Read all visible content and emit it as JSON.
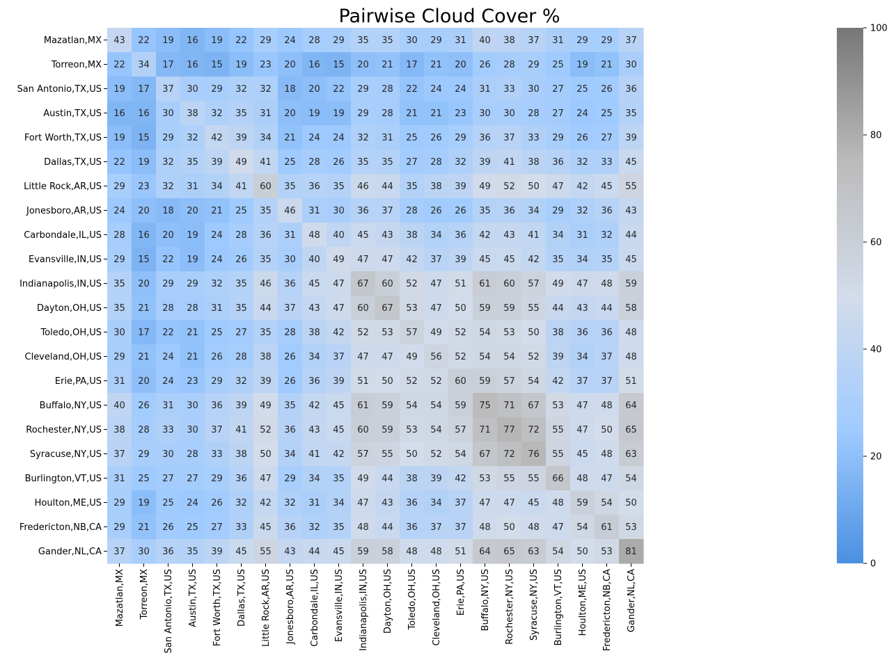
{
  "chart_data": {
    "type": "heatmap",
    "title": "Pairwise Cloud Cover %",
    "xlabel": "",
    "ylabel": "",
    "rows": [
      "Mazatlan,MX",
      "Torreon,MX",
      "San Antonio,TX,US",
      "Austin,TX,US",
      "Fort Worth,TX,US",
      "Dallas,TX,US",
      "Little Rock,AR,US",
      "Jonesboro,AR,US",
      "Carbondale,IL,US",
      "Evansville,IN,US",
      "Indianapolis,IN,US",
      "Dayton,OH,US",
      "Toledo,OH,US",
      "Cleveland,OH,US",
      "Erie,PA,US",
      "Buffalo,NY,US",
      "Rochester,NY,US",
      "Syracuse,NY,US",
      "Burlington,VT,US",
      "Houlton,ME,US",
      "Fredericton,NB,CA",
      "Gander,NL,CA"
    ],
    "columns": [
      "Mazatlan,MX",
      "Torreon,MX",
      "San Antonio,TX,US",
      "Austin,TX,US",
      "Fort Worth,TX,US",
      "Dallas,TX,US",
      "Little Rock,AR,US",
      "Jonesboro,AR,US",
      "Carbondale,IL,US",
      "Evansville,IN,US",
      "Indianapolis,IN,US",
      "Dayton,OH,US",
      "Toledo,OH,US",
      "Cleveland,OH,US",
      "Erie,PA,US",
      "Buffalo,NY,US",
      "Rochester,NY,US",
      "Syracuse,NY,US",
      "Burlington,VT,US",
      "Houlton,ME,US",
      "Fredericton,NB,CA",
      "Gander,NL,CA"
    ],
    "values": [
      [
        43,
        22,
        19,
        16,
        19,
        22,
        29,
        24,
        28,
        29,
        35,
        35,
        30,
        29,
        31,
        40,
        38,
        37,
        31,
        29,
        29,
        37
      ],
      [
        22,
        34,
        17,
        16,
        15,
        19,
        23,
        20,
        16,
        15,
        20,
        21,
        17,
        21,
        20,
        26,
        28,
        29,
        25,
        19,
        21,
        30
      ],
      [
        19,
        17,
        37,
        30,
        29,
        32,
        32,
        18,
        20,
        22,
        29,
        28,
        22,
        24,
        24,
        31,
        33,
        30,
        27,
        25,
        26,
        36
      ],
      [
        16,
        16,
        30,
        38,
        32,
        35,
        31,
        20,
        19,
        19,
        29,
        28,
        21,
        21,
        23,
        30,
        30,
        28,
        27,
        24,
        25,
        35
      ],
      [
        19,
        15,
        29,
        32,
        42,
        39,
        34,
        21,
        24,
        24,
        32,
        31,
        25,
        26,
        29,
        36,
        37,
        33,
        29,
        26,
        27,
        39
      ],
      [
        22,
        19,
        32,
        35,
        39,
        49,
        41,
        25,
        28,
        26,
        35,
        35,
        27,
        28,
        32,
        39,
        41,
        38,
        36,
        32,
        33,
        45
      ],
      [
        29,
        23,
        32,
        31,
        34,
        41,
        60,
        35,
        36,
        35,
        46,
        44,
        35,
        38,
        39,
        49,
        52,
        50,
        47,
        42,
        45,
        55
      ],
      [
        24,
        20,
        18,
        20,
        21,
        25,
        35,
        46,
        31,
        30,
        36,
        37,
        28,
        26,
        26,
        35,
        36,
        34,
        29,
        32,
        36,
        43
      ],
      [
        28,
        16,
        20,
        19,
        24,
        28,
        36,
        31,
        48,
        40,
        45,
        43,
        38,
        34,
        36,
        42,
        43,
        41,
        34,
        31,
        32,
        44
      ],
      [
        29,
        15,
        22,
        19,
        24,
        26,
        35,
        30,
        40,
        49,
        47,
        47,
        42,
        37,
        39,
        45,
        45,
        42,
        35,
        34,
        35,
        45
      ],
      [
        35,
        20,
        29,
        29,
        32,
        35,
        46,
        36,
        45,
        47,
        67,
        60,
        52,
        47,
        51,
        61,
        60,
        57,
        49,
        47,
        48,
        59
      ],
      [
        35,
        21,
        28,
        28,
        31,
        35,
        44,
        37,
        43,
        47,
        60,
        67,
        53,
        47,
        50,
        59,
        59,
        55,
        44,
        43,
        44,
        58
      ],
      [
        30,
        17,
        22,
        21,
        25,
        27,
        35,
        28,
        38,
        42,
        52,
        53,
        57,
        49,
        52,
        54,
        53,
        50,
        38,
        36,
        36,
        48
      ],
      [
        29,
        21,
        24,
        21,
        26,
        28,
        38,
        26,
        34,
        37,
        47,
        47,
        49,
        56,
        52,
        54,
        54,
        52,
        39,
        34,
        37,
        48
      ],
      [
        31,
        20,
        24,
        23,
        29,
        32,
        39,
        26,
        36,
        39,
        51,
        50,
        52,
        52,
        60,
        59,
        57,
        54,
        42,
        37,
        37,
        51
      ],
      [
        40,
        26,
        31,
        30,
        36,
        39,
        49,
        35,
        42,
        45,
        61,
        59,
        54,
        54,
        59,
        75,
        71,
        67,
        53,
        47,
        48,
        64
      ],
      [
        38,
        28,
        33,
        30,
        37,
        41,
        52,
        36,
        43,
        45,
        60,
        59,
        53,
        54,
        57,
        71,
        77,
        72,
        55,
        47,
        50,
        65
      ],
      [
        37,
        29,
        30,
        28,
        33,
        38,
        50,
        34,
        41,
        42,
        57,
        55,
        50,
        52,
        54,
        67,
        72,
        76,
        55,
        45,
        48,
        63
      ],
      [
        31,
        25,
        27,
        27,
        29,
        36,
        47,
        29,
        34,
        35,
        49,
        44,
        38,
        39,
        42,
        53,
        55,
        55,
        66,
        48,
        47,
        54
      ],
      [
        29,
        19,
        25,
        24,
        26,
        32,
        42,
        32,
        31,
        34,
        47,
        43,
        36,
        34,
        37,
        47,
        47,
        45,
        48,
        59,
        54,
        50
      ],
      [
        29,
        21,
        26,
        25,
        27,
        33,
        45,
        36,
        32,
        35,
        48,
        44,
        36,
        37,
        37,
        48,
        50,
        48,
        47,
        54,
        61,
        53
      ],
      [
        37,
        30,
        36,
        35,
        39,
        45,
        55,
        43,
        44,
        45,
        59,
        58,
        48,
        48,
        51,
        64,
        65,
        63,
        54,
        50,
        53,
        81
      ]
    ],
    "vmin": 0,
    "vmax": 100,
    "colorbar_ticks": [
      0,
      20,
      40,
      60,
      80,
      100
    ],
    "colormap": [
      "#4a90e2",
      "#a0cbff",
      "#d3dcea",
      "#bbbbbb",
      "#777777"
    ],
    "annotated": true,
    "grid": false
  }
}
